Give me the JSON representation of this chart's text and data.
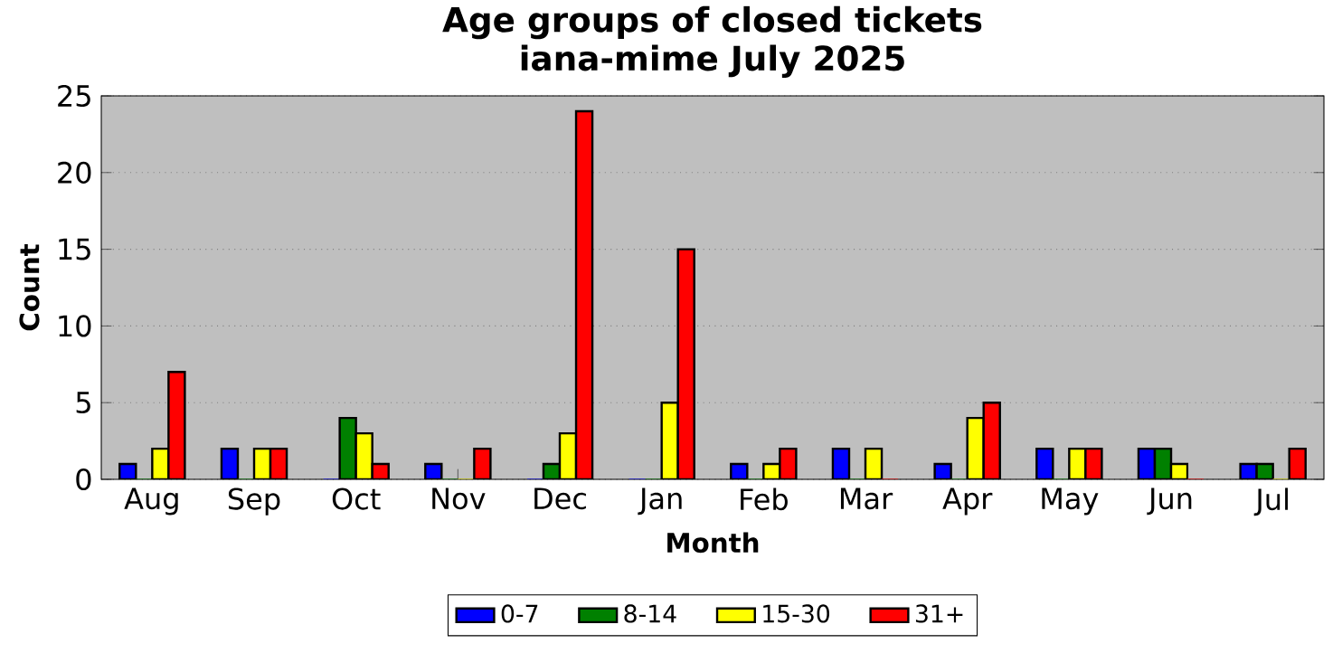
{
  "chart_data": {
    "type": "bar",
    "title": "Age groups of closed tickets\niana-mime July 2025",
    "xlabel": "Month",
    "ylabel": "Count",
    "categories": [
      "Aug",
      "Sep",
      "Oct",
      "Nov",
      "Dec",
      "Jan",
      "Feb",
      "Mar",
      "Apr",
      "May",
      "Jun",
      "Jul"
    ],
    "series": [
      {
        "name": "0-7",
        "color": "#0000ff",
        "values": [
          1,
          2,
          0,
          1,
          0,
          0,
          1,
          2,
          1,
          2,
          2,
          1
        ]
      },
      {
        "name": "8-14",
        "color": "#008000",
        "values": [
          0,
          0,
          4,
          0,
          1,
          0,
          0,
          0,
          0,
          0,
          2,
          1
        ]
      },
      {
        "name": "15-30",
        "color": "#ffff00",
        "values": [
          2,
          2,
          3,
          0,
          3,
          5,
          1,
          2,
          4,
          2,
          1,
          0
        ]
      },
      {
        "name": "31+",
        "color": "#ff0000",
        "values": [
          7,
          2,
          1,
          2,
          24,
          15,
          2,
          0,
          5,
          2,
          0,
          2
        ]
      }
    ],
    "ylim": [
      0,
      25
    ],
    "yticks": [
      0,
      5,
      10,
      15,
      20,
      25
    ],
    "grid": "y",
    "legend": "bottom"
  }
}
